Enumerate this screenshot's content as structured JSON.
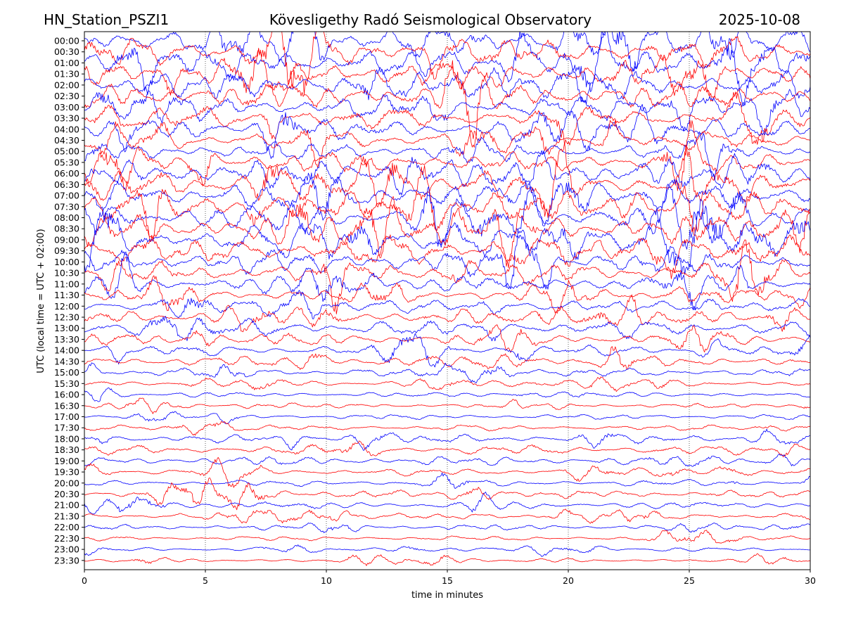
{
  "header": {
    "station": "HN_Station_PSZI1",
    "observatory": "Kövesligethy Radó Seismological Observatory",
    "date": "2025-10-08"
  },
  "chart_data": {
    "type": "line",
    "title": "Kövesligethy Radó Seismological Observatory",
    "xlabel": "time in minutes",
    "ylabel": "UTC (local time = UTC + 02:00)",
    "xlim": [
      0,
      30
    ],
    "xticks": [
      0,
      5,
      10,
      15,
      20,
      25,
      30
    ],
    "grid": "vertical dotted at x ticks",
    "series_colors": [
      "#0000ff",
      "#ff0000"
    ],
    "color_pattern": "alternating blue/red per row, starting blue at 00:00",
    "rows": [
      "00:00",
      "00:30",
      "01:00",
      "01:30",
      "02:00",
      "02:30",
      "03:00",
      "03:30",
      "04:00",
      "04:30",
      "05:00",
      "05:30",
      "06:00",
      "06:30",
      "07:00",
      "07:30",
      "08:00",
      "08:30",
      "09:00",
      "09:30",
      "10:00",
      "10:30",
      "11:00",
      "11:30",
      "12:00",
      "12:30",
      "13:00",
      "13:30",
      "14:00",
      "14:30",
      "15:00",
      "15:30",
      "16:00",
      "16:30",
      "17:00",
      "17:30",
      "18:00",
      "18:30",
      "19:00",
      "19:30",
      "20:00",
      "20:30",
      "21:00",
      "21:30",
      "22:00",
      "22:30",
      "23:00",
      "23:30"
    ],
    "relative_amplitude": [
      1.0,
      1.0,
      1.0,
      1.0,
      0.95,
      0.9,
      0.75,
      0.7,
      0.6,
      0.5,
      0.55,
      0.6,
      0.95,
      1.0,
      1.0,
      1.0,
      1.0,
      1.0,
      1.0,
      0.95,
      0.8,
      0.65,
      0.45,
      0.35,
      0.35,
      0.4,
      0.45,
      0.35,
      0.3,
      0.3,
      0.22,
      0.15,
      0.1,
      0.08,
      0.1,
      0.12,
      0.22,
      0.25,
      0.25,
      0.18,
      0.15,
      0.18,
      0.2,
      0.15,
      0.12,
      0.08,
      0.06,
      0.05
    ]
  }
}
